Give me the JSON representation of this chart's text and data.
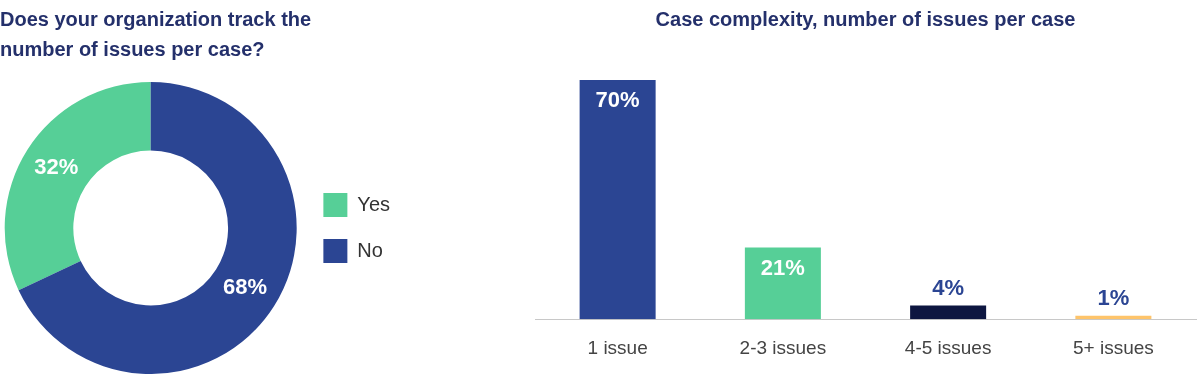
{
  "chart_data": [
    {
      "type": "donut",
      "title": "Does your organization track the number of issues per case?",
      "categories": [
        "Yes",
        "No"
      ],
      "values": [
        32,
        68
      ],
      "colors": [
        "#56cf97",
        "#2b4593"
      ],
      "value_labels": [
        "32%",
        "68%"
      ],
      "legend": "right"
    },
    {
      "type": "bar",
      "title": "Case complexity, number of issues per case",
      "categories": [
        "1 issue",
        "2-3 issues",
        "4-5 issues",
        "5+ issues"
      ],
      "values": [
        70,
        21,
        4,
        1
      ],
      "colors": [
        "#2b4593",
        "#56cf97",
        "#0d1640",
        "#fec46a"
      ],
      "value_labels": [
        "70%",
        "21%",
        "4%",
        "1%"
      ]
    }
  ]
}
